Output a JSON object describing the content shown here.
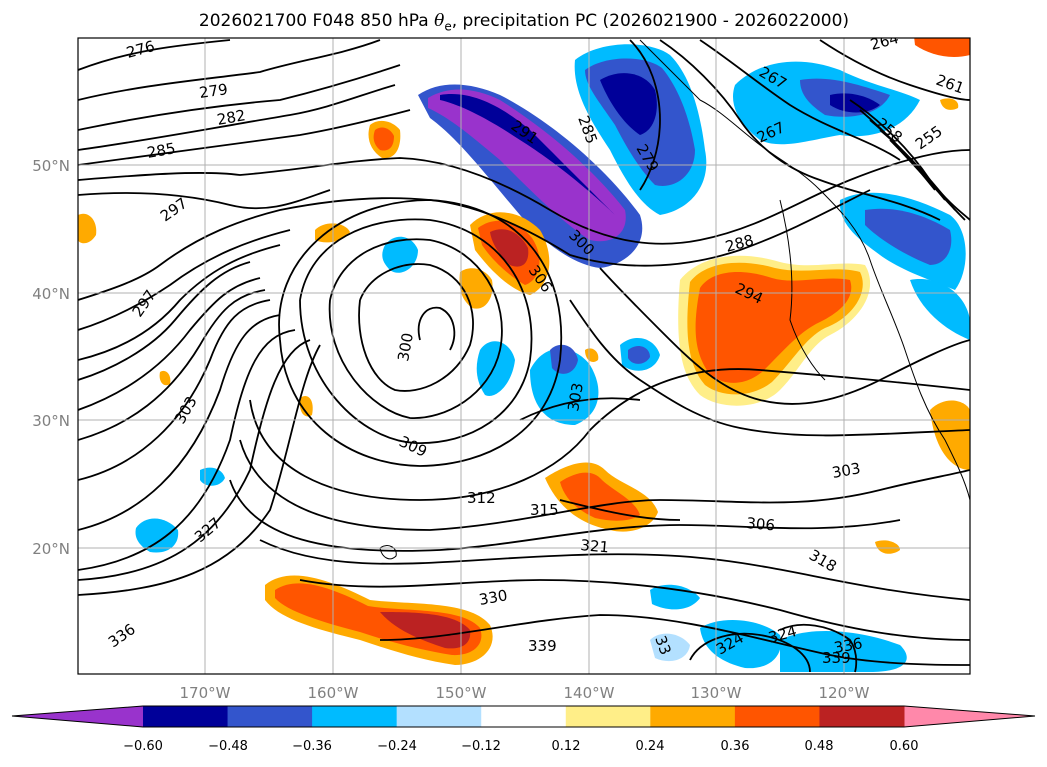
{
  "title": {
    "prefix": "2026021700 F048 850 hPa ",
    "symbol": "θ",
    "subscript": "e",
    "suffix": ", precipitation PC (2026021900 - 2026022000)"
  },
  "map": {
    "lat_labels": [
      "50°N",
      "40°N",
      "30°N",
      "20°N"
    ],
    "lon_labels": [
      "170°W",
      "160°W",
      "150°W",
      "140°W",
      "130°W",
      "120°W"
    ]
  },
  "contour_labels": [
    "276",
    "279",
    "282",
    "285",
    "297",
    "297",
    "303",
    "327",
    "336",
    "291",
    "285",
    "279",
    "300",
    "306",
    "300",
    "309",
    "312",
    "315",
    "321",
    "330",
    "339",
    "303",
    "288",
    "294",
    "303",
    "306",
    "318",
    "324",
    "324",
    "336",
    "339",
    "33",
    "264",
    "267",
    "267",
    "261",
    "258",
    "255"
  ],
  "colorbar": {
    "colors": [
      "#9933cc",
      "#000099",
      "#3355cc",
      "#00bbff",
      "#b3e0ff",
      "#ffffff",
      "#ffee88",
      "#ffaa00",
      "#ff5500",
      "#bb2222",
      "#ff88aa"
    ],
    "ticks": [
      "−0.60",
      "−0.48",
      "−0.36",
      "−0.24",
      "−0.12",
      "0.12",
      "0.24",
      "0.36",
      "0.48",
      "0.60"
    ]
  }
}
